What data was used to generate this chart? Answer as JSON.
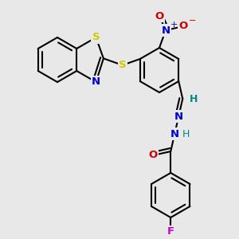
{
  "bg_color": "#e8e8e8",
  "bond_color": "#000000",
  "bond_width": 1.5,
  "atom_colors": {
    "S": "#cccc00",
    "N": "#0000cc",
    "O": "#cc0000",
    "F": "#cc00cc",
    "H": "#008888",
    "C": "#000000"
  }
}
